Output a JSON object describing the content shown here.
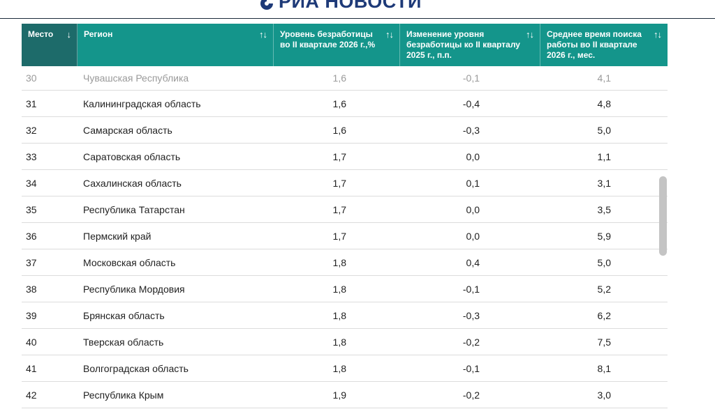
{
  "brand": {
    "name": "РИА НОВОСТИ",
    "icon": "ria-logo-icon",
    "color": "#1e3a78"
  },
  "colors": {
    "header_bg": "#14958b",
    "active_header_bg": "#1d6b6a",
    "faded_text": "#9a9a9a"
  },
  "table": {
    "columns": [
      {
        "label": "Место",
        "sort_icon": "↓",
        "active": true
      },
      {
        "label": "Регион",
        "sort_icon": "↑↓"
      },
      {
        "label": "Уровень безработицы во II квартале 2026 г.,%",
        "sort_icon": "↑↓"
      },
      {
        "label": "Изменение уровня безработицы ко II кварталу 2025 г., п.п.",
        "sort_icon": "↑↓"
      },
      {
        "label": "Среднее время поиска работы во II квартале 2026 г., мес.",
        "sort_icon": "↑↓"
      }
    ],
    "rows": [
      {
        "rank": "30",
        "region": "Чувашская Республика",
        "rate": "1,6",
        "change": "-0,1",
        "time": "4,1"
      },
      {
        "rank": "31",
        "region": "Калининградская область",
        "rate": "1,6",
        "change": "-0,4",
        "time": "4,8"
      },
      {
        "rank": "32",
        "region": "Самарская область",
        "rate": "1,6",
        "change": "-0,3",
        "time": "5,0"
      },
      {
        "rank": "33",
        "region": "Саратовская область",
        "rate": "1,7",
        "change": "0,0",
        "time": "1,1"
      },
      {
        "rank": "34",
        "region": "Сахалинская область",
        "rate": "1,7",
        "change": "0,1",
        "time": "3,1"
      },
      {
        "rank": "35",
        "region": "Республика Татарстан",
        "rate": "1,7",
        "change": "0,0",
        "time": "3,5"
      },
      {
        "rank": "36",
        "region": "Пермский край",
        "rate": "1,7",
        "change": "0,0",
        "time": "5,9"
      },
      {
        "rank": "37",
        "region": "Московская область",
        "rate": "1,8",
        "change": "0,4",
        "time": "5,0"
      },
      {
        "rank": "38",
        "region": "Республика Мордовия",
        "rate": "1,8",
        "change": "-0,1",
        "time": "5,2"
      },
      {
        "rank": "39",
        "region": "Брянская область",
        "rate": "1,8",
        "change": "-0,3",
        "time": "6,2"
      },
      {
        "rank": "40",
        "region": "Тверская область",
        "rate": "1,8",
        "change": "-0,2",
        "time": "7,5"
      },
      {
        "rank": "41",
        "region": "Волгоградская область",
        "rate": "1,8",
        "change": "-0,1",
        "time": "8,1"
      },
      {
        "rank": "42",
        "region": "Республика Крым",
        "rate": "1,9",
        "change": "-0,2",
        "time": "3,0"
      }
    ]
  }
}
